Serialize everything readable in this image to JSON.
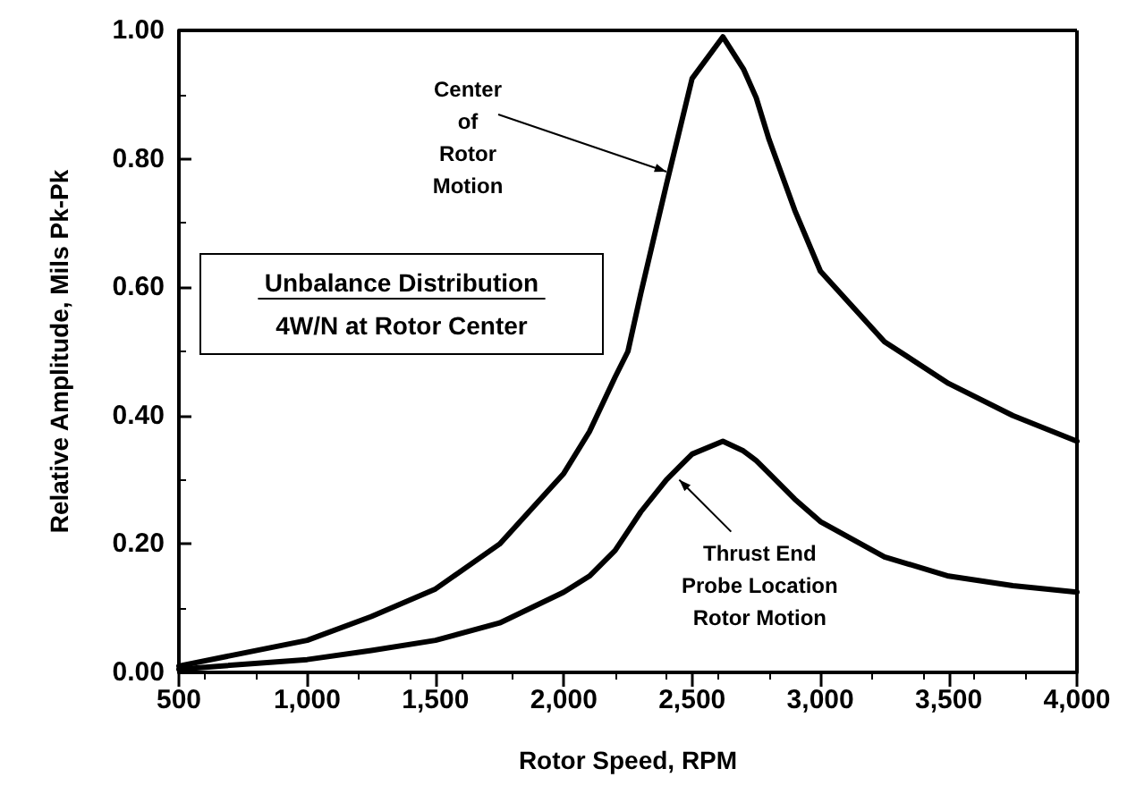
{
  "chart_data": {
    "type": "line",
    "xlabel": "Rotor Speed, RPM",
    "ylabel": "Relative Amplitude, Mils Pk-Pk",
    "xlim": [
      500,
      4000
    ],
    "ylim": [
      0,
      1
    ],
    "xticks": [
      {
        "value": 500,
        "label": "500"
      },
      {
        "value": 1000,
        "label": "1,000"
      },
      {
        "value": 1500,
        "label": "1,500"
      },
      {
        "value": 2000,
        "label": "2,000"
      },
      {
        "value": 2500,
        "label": "2,500"
      },
      {
        "value": 3000,
        "label": "3,000"
      },
      {
        "value": 3500,
        "label": "3,500"
      },
      {
        "value": 4000,
        "label": "4,000"
      }
    ],
    "yticks": [
      {
        "value": 0,
        "label": "0.00"
      },
      {
        "value": 0.2,
        "label": "0.20"
      },
      {
        "value": 0.4,
        "label": "0.40"
      },
      {
        "value": 0.6,
        "label": "0.60"
      },
      {
        "value": 0.8,
        "label": "0.80"
      },
      {
        "value": 1,
        "label": "1.00"
      }
    ],
    "x": [
      500,
      1000,
      1250,
      1500,
      1750,
      2000,
      2100,
      2200,
      2250,
      2300,
      2400,
      2500,
      2620,
      2700,
      2750,
      2800,
      2900,
      3000,
      3250,
      3500,
      3750,
      4000
    ],
    "series": [
      {
        "color": "#000000",
        "values": [
          0.01,
          0.05,
          0.087,
          0.13,
          0.2,
          0.31,
          0.375,
          0.46,
          0.5,
          0.59,
          0.76,
          0.925,
          0.99,
          0.94,
          0.895,
          0.83,
          0.72,
          0.625,
          0.515,
          0.45,
          0.4,
          0.36
        ]
      },
      {
        "color": "#000000",
        "values": [
          0.005,
          0.02,
          0.034,
          0.05,
          0.077,
          0.125,
          0.15,
          0.19,
          0.22,
          0.25,
          0.3,
          0.34,
          0.36,
          0.345,
          0.33,
          0.31,
          0.27,
          0.235,
          0.18,
          0.15,
          0.135,
          0.125
        ]
      }
    ],
    "annotations": [
      {
        "text": "Center\nof\nRotor\nMotion",
        "x": 2400,
        "y": 0.78
      },
      {
        "text": "Thrust End\nProbe Location\nRotor Motion",
        "x": 2450,
        "y": 0.3
      },
      "Unbalance Distribution",
      "4W/N at Rotor Center"
    ],
    "grid": false,
    "marker": "none",
    "line_style": "solid"
  }
}
